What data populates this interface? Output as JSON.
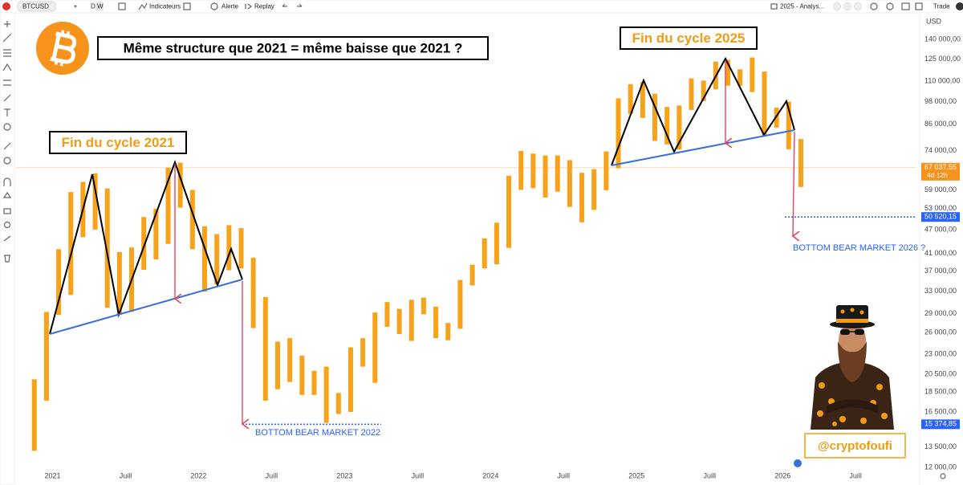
{
  "toolbar": {
    "symbol": "BTCUSD",
    "intervals": [
      "D",
      "W"
    ],
    "indicators": "Indicateurs",
    "alert": "Alerte",
    "replay": "Replay",
    "layout": "2025 - Analys...",
    "trade": "Trade"
  },
  "chart_data": {
    "type": "range-bar",
    "title": "Même structure que 2021 = même baisse que 2021 ?",
    "currency": "USD",
    "color": "#f7a21b",
    "x": [
      "2020-11",
      "2020-12",
      "2021-01",
      "2021-02",
      "2021-03",
      "2021-04",
      "2021-05",
      "2021-06",
      "2021-07",
      "2021-08",
      "2021-09",
      "2021-10",
      "2021-11",
      "2021-12",
      "2022-01",
      "2022-02",
      "2022-03",
      "2022-04",
      "2022-05",
      "2022-06",
      "2022-07",
      "2022-08",
      "2022-09",
      "2022-10",
      "2022-11",
      "2022-12",
      "2023-01",
      "2023-02",
      "2023-03",
      "2023-04",
      "2023-05",
      "2023-06",
      "2023-07",
      "2023-08",
      "2023-09",
      "2023-10",
      "2023-11",
      "2023-12",
      "2024-01",
      "2024-02",
      "2024-03",
      "2024-04",
      "2024-05",
      "2024-06",
      "2024-07",
      "2024-08",
      "2024-09",
      "2024-10",
      "2024-11",
      "2024-12",
      "2025-01",
      "2025-02",
      "2025-03",
      "2025-04",
      "2025-05",
      "2025-06",
      "2025-07",
      "2025-08",
      "2025-09",
      "2025-10",
      "2025-11",
      "2025-12",
      "2026-01",
      "2026-02"
    ],
    "high": [
      19900,
      29300,
      42000,
      58300,
      61800,
      64900,
      59500,
      41300,
      42400,
      50500,
      53000,
      67000,
      69000,
      59000,
      47900,
      45800,
      48200,
      47400,
      40000,
      31900,
      24700,
      25200,
      22800,
      20900,
      21400,
      18400,
      23900,
      25200,
      29200,
      31000,
      29800,
      31400,
      31800,
      30200,
      27500,
      35200,
      38400,
      44700,
      48900,
      64000,
      73800,
      72700,
      71900,
      71900,
      70000,
      65100,
      66500,
      73600,
      99800,
      108300,
      109600,
      102500,
      95000,
      95800,
      111900,
      110500,
      123200,
      124500,
      117900,
      126200,
      116400,
      94600,
      97900,
      79000
    ],
    "low": [
      13200,
      17600,
      28800,
      32300,
      45000,
      47000,
      30000,
      28800,
      29300,
      37300,
      39600,
      43300,
      53300,
      42000,
      32900,
      34300,
      37200,
      37600,
      26700,
      17600,
      18800,
      19600,
      18200,
      18200,
      15500,
      16300,
      16500,
      21400,
      19500,
      26900,
      25800,
      24800,
      28900,
      25200,
      24900,
      26600,
      34100,
      37600,
      38500,
      42300,
      59000,
      59600,
      56500,
      58400,
      53500,
      49000,
      52600,
      58900,
      66800,
      91300,
      89200,
      78200,
      76600,
      74400,
      93400,
      98200,
      105100,
      107300,
      107300,
      103500,
      80600,
      84400,
      74500,
      60000
    ],
    "xlim": [
      "2020-10",
      "2026-12"
    ],
    "xticks": [
      {
        "value": "2021-01",
        "label": "2021"
      },
      {
        "value": "2021-07",
        "label": "Juill"
      },
      {
        "value": "2022-01",
        "label": "2022"
      },
      {
        "value": "2022-07",
        "label": "Juill"
      },
      {
        "value": "2023-01",
        "label": "2023"
      },
      {
        "value": "2023-07",
        "label": "Juill"
      },
      {
        "value": "2024-01",
        "label": "2024"
      },
      {
        "value": "2024-07",
        "label": "Juill"
      },
      {
        "value": "2025-01",
        "label": "2025"
      },
      {
        "value": "2025-07",
        "label": "Juill"
      },
      {
        "value": "2026-01",
        "label": "2026"
      },
      {
        "value": "2026-07",
        "label": "Juill"
      }
    ],
    "ylim": [
      10900,
      161000
    ],
    "log_scale": true,
    "grid": false,
    "yticks": [
      {
        "value": 140000,
        "label": "140 000,00"
      },
      {
        "value": 125000,
        "label": "125 000,00"
      },
      {
        "value": 110000,
        "label": "110 000,00"
      },
      {
        "value": 98000,
        "label": "98 000,00"
      },
      {
        "value": 86000,
        "label": "86 000,00"
      },
      {
        "value": 74000,
        "label": "74 000,00"
      },
      {
        "value": 59000,
        "label": "59 000,00"
      },
      {
        "value": 53000,
        "label": "53 000,00"
      },
      {
        "value": 47000,
        "label": "47 000,00"
      },
      {
        "value": 41000,
        "label": "41 000,00"
      },
      {
        "value": 37000,
        "label": "37 000,00"
      },
      {
        "value": 33000,
        "label": "33 000,00"
      },
      {
        "value": 29000,
        "label": "29 000,00"
      },
      {
        "value": 26000,
        "label": "26 000,00"
      },
      {
        "value": 23000,
        "label": "23 000,00"
      },
      {
        "value": 20500,
        "label": "20 500,00"
      },
      {
        "value": 18500,
        "label": "18 500,00"
      },
      {
        "value": 16500,
        "label": "16 500,00"
      },
      {
        "value": 13500,
        "label": "13 500,00"
      },
      {
        "value": 12000,
        "label": "12 000,00"
      }
    ],
    "price_labels": [
      {
        "value": 67037.55,
        "label": "67 037,55",
        "color": "#f7931a"
      },
      {
        "value": 50520.15,
        "label": "50 520,15",
        "color": "#2962ff"
      },
      {
        "value": 15374.85,
        "label": "15 374,85",
        "color": "#2962ff"
      }
    ],
    "countdown": "4d 12h",
    "annotations": [
      "Fin du cycle 2021",
      "Fin du cycle 2025",
      "BOTTOM BEAR MARKET 2022",
      "BOTTOM BEAR MARKET 2026 ?",
      "@cryptofoufi"
    ]
  }
}
